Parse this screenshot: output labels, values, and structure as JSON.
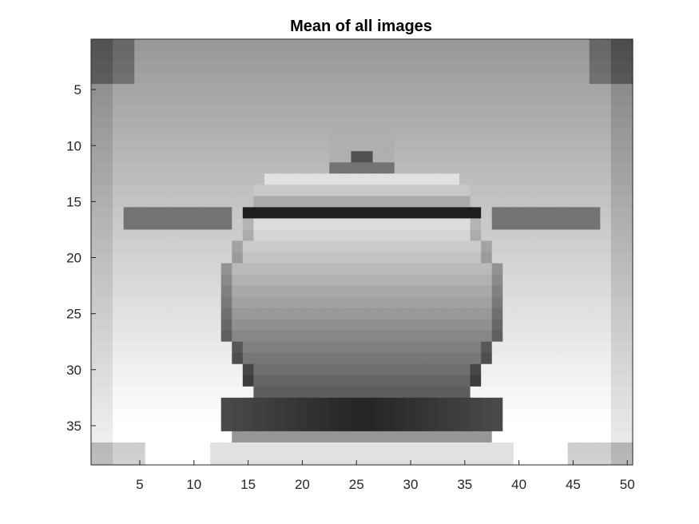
{
  "figure": {
    "title": "Mean of all images",
    "xticks": [
      "5",
      "10",
      "15",
      "20",
      "25",
      "30",
      "35",
      "40",
      "45",
      "50"
    ],
    "yticks": [
      "5",
      "10",
      "15",
      "20",
      "25",
      "30",
      "35"
    ]
  },
  "chart_data": {
    "type": "heatmap",
    "colormap": "gray",
    "title": "Mean of all images",
    "xlim": [
      0.5,
      50.5
    ],
    "ylim": [
      0.5,
      38.5
    ],
    "y_direction": "reverse",
    "xticks": [
      5,
      10,
      15,
      20,
      25,
      30,
      35,
      40,
      45,
      50
    ],
    "yticks": [
      5,
      10,
      15,
      20,
      25,
      30,
      35
    ],
    "grid": false,
    "legend": "none"
  }
}
